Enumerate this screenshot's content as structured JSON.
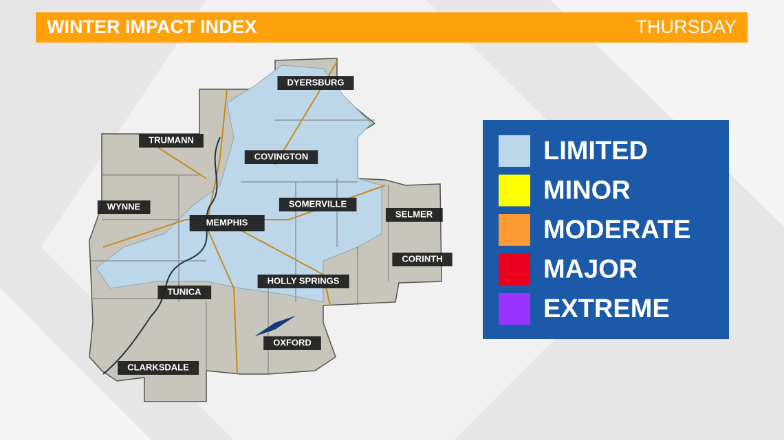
{
  "header": {
    "title": "WINTER IMPACT INDEX",
    "day": "THURSDAY"
  },
  "cities": [
    {
      "label": "DYERSBURG"
    },
    {
      "label": "TRUMANN"
    },
    {
      "label": "COVINGTON"
    },
    {
      "label": "WYNNE"
    },
    {
      "label": "MEMPHIS"
    },
    {
      "label": "SOMERVILLE"
    },
    {
      "label": "SELMER"
    },
    {
      "label": "CORINTH"
    },
    {
      "label": "TUNICA"
    },
    {
      "label": "HOLLY SPRINGS"
    },
    {
      "label": "OXFORD"
    },
    {
      "label": "CLARKSDALE"
    }
  ],
  "legend": [
    {
      "label": "LIMITED",
      "color": "#bcd6ea"
    },
    {
      "label": "MINOR",
      "color": "#ffff00"
    },
    {
      "label": "MODERATE",
      "color": "#ff9933"
    },
    {
      "label": "MAJOR",
      "color": "#e8001c"
    },
    {
      "label": "EXTREME",
      "color": "#9933ff"
    }
  ]
}
